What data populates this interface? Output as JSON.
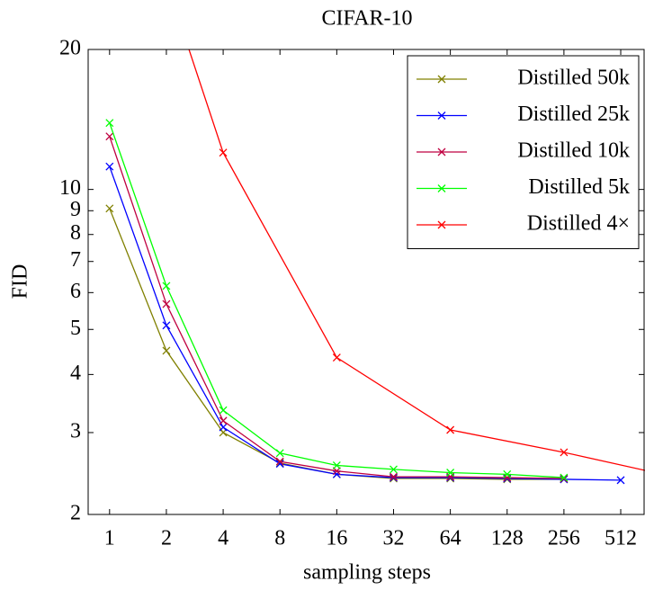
{
  "chart_data": {
    "type": "line",
    "title": "CIFAR-10",
    "xlabel": "sampling steps",
    "ylabel": "FID",
    "xlog": true,
    "ylog": true,
    "grid": false,
    "legend": "upper right",
    "xlim": [
      0.77,
      681
    ],
    "ylim": [
      2,
      20
    ],
    "xticks": [
      1,
      2,
      4,
      8,
      16,
      32,
      64,
      128,
      256,
      512
    ],
    "yticks": [
      2,
      3,
      4,
      5,
      6,
      7,
      8,
      9,
      10,
      20
    ],
    "series": [
      {
        "name": "Distilled 50k",
        "color": "#808000",
        "x": [
          1,
          2,
          4,
          8,
          16,
          32,
          64,
          128,
          256
        ],
        "values": [
          9.1,
          4.5,
          3.0,
          2.58,
          2.44,
          2.39,
          2.39,
          2.38,
          2.38
        ]
      },
      {
        "name": "Distilled 25k",
        "color": "#0000ff",
        "x": [
          1,
          2,
          4,
          8,
          16,
          32,
          64,
          128,
          256,
          512
        ],
        "values": [
          11.2,
          5.1,
          3.08,
          2.57,
          2.44,
          2.4,
          2.4,
          2.39,
          2.38,
          2.37
        ]
      },
      {
        "name": "Distilled 10k",
        "color": "#bf0040",
        "x": [
          1,
          2,
          4,
          8,
          16,
          32,
          64,
          128,
          256
        ],
        "values": [
          13.0,
          5.67,
          3.18,
          2.6,
          2.48,
          2.41,
          2.41,
          2.4,
          2.39
        ]
      },
      {
        "name": "Distilled 5k",
        "color": "#00ff00",
        "x": [
          1,
          2,
          4,
          8,
          16,
          32,
          64,
          128,
          256
        ],
        "values": [
          13.9,
          6.2,
          3.35,
          2.71,
          2.55,
          2.5,
          2.46,
          2.44,
          2.4
        ]
      },
      {
        "name": "Distilled 4×",
        "color": "#ff0000",
        "x": [
          1,
          4,
          16,
          64,
          256,
          1024
        ],
        "values": [
          65.5,
          12.0,
          4.35,
          3.04,
          2.72,
          2.4
        ]
      }
    ]
  }
}
